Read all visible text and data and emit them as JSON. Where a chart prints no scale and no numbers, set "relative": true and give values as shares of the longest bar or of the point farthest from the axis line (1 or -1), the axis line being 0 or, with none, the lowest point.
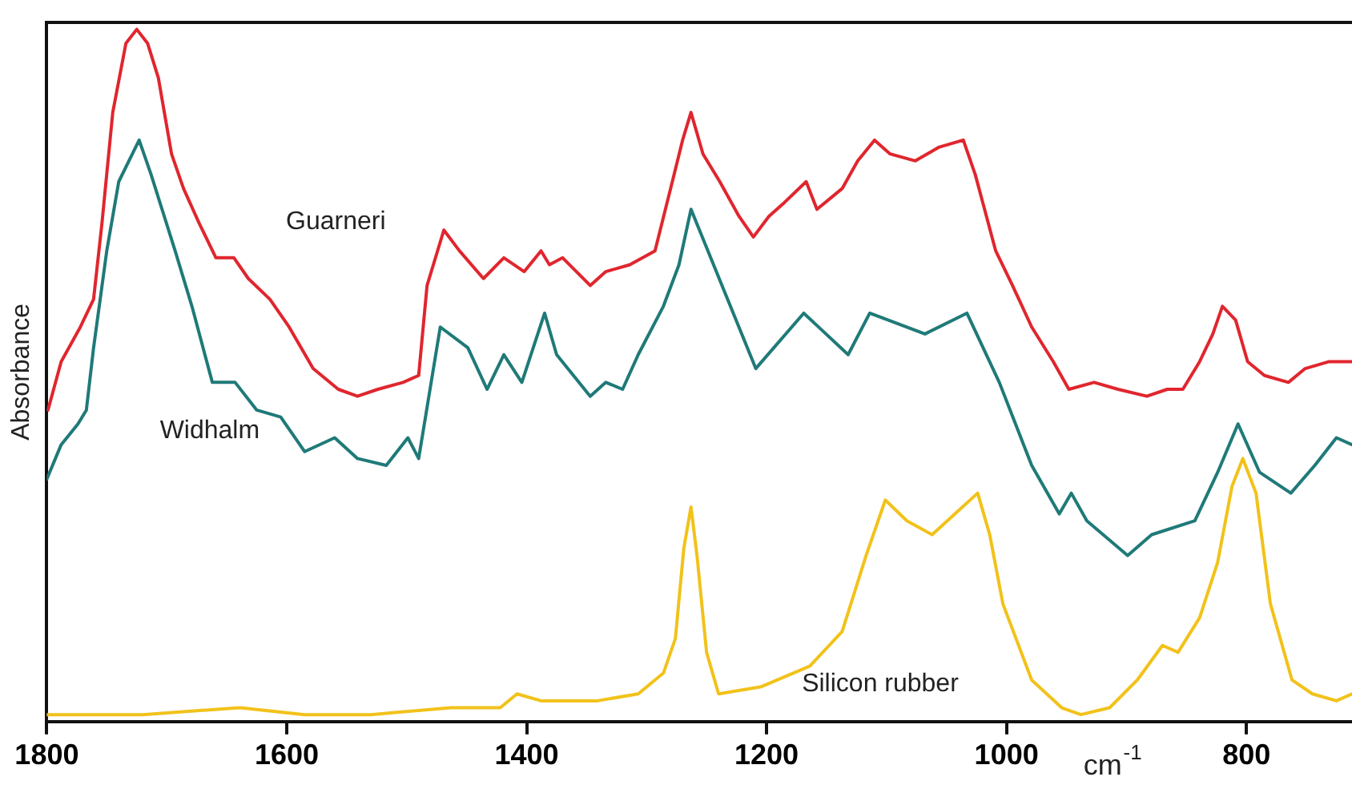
{
  "chart_data": {
    "type": "line",
    "relative": true,
    "xlabel": "cm$^{-1}$",
    "ylabel": "Absorbance",
    "xlim": [
      1800,
      712
    ],
    "xticks": [
      1800,
      1600,
      1400,
      1200,
      1000,
      800
    ],
    "grid": false,
    "legend": false,
    "marker": "none",
    "line_style": "solid",
    "series": [
      {
        "name": "Guarneri",
        "color": "#e0262e",
        "x": [
          1799,
          1788,
          1772,
          1761,
          1754,
          1745,
          1734,
          1725,
          1716,
          1707,
          1696,
          1686,
          1673,
          1659,
          1644,
          1632,
          1614,
          1598,
          1578,
          1557,
          1541,
          1524,
          1503,
          1490,
          1483,
          1469,
          1456,
          1436,
          1419,
          1402,
          1388,
          1381,
          1370,
          1347,
          1334,
          1314,
          1293,
          1280,
          1270,
          1263,
          1253,
          1239,
          1223,
          1211,
          1198,
          1185,
          1167,
          1158,
          1137,
          1124,
          1110,
          1097,
          1076,
          1056,
          1036,
          1026,
          1009,
          995,
          979,
          961,
          948,
          927,
          907,
          883,
          866,
          853,
          839,
          828,
          820,
          809,
          799,
          785,
          765,
          751,
          731,
          712
        ],
        "values": [
          0.45,
          0.52,
          0.57,
          0.61,
          0.72,
          0.88,
          0.98,
          1.0,
          0.98,
          0.93,
          0.82,
          0.77,
          0.72,
          0.67,
          0.67,
          0.64,
          0.61,
          0.57,
          0.51,
          0.48,
          0.47,
          0.48,
          0.49,
          0.5,
          0.63,
          0.71,
          0.68,
          0.64,
          0.67,
          0.65,
          0.68,
          0.66,
          0.67,
          0.63,
          0.65,
          0.66,
          0.68,
          0.77,
          0.84,
          0.88,
          0.82,
          0.78,
          0.73,
          0.7,
          0.73,
          0.75,
          0.78,
          0.74,
          0.77,
          0.81,
          0.84,
          0.82,
          0.81,
          0.83,
          0.84,
          0.79,
          0.68,
          0.63,
          0.57,
          0.52,
          0.48,
          0.49,
          0.48,
          0.47,
          0.48,
          0.48,
          0.52,
          0.56,
          0.6,
          0.58,
          0.52,
          0.5,
          0.49,
          0.51,
          0.52,
          0.52
        ]
      },
      {
        "name": "Widhalm",
        "color": "#1f7a78",
        "x": [
          1800,
          1788,
          1774,
          1767,
          1761,
          1750,
          1740,
          1723,
          1713,
          1693,
          1679,
          1662,
          1643,
          1625,
          1605,
          1585,
          1560,
          1541,
          1517,
          1499,
          1490,
          1472,
          1449,
          1433,
          1419,
          1404,
          1385,
          1375,
          1347,
          1334,
          1320,
          1307,
          1286,
          1273,
          1263,
          1209,
          1169,
          1132,
          1114,
          1068,
          1033,
          1006,
          979,
          956,
          946,
          933,
          899,
          879,
          843,
          824,
          807,
          789,
          763,
          743,
          725,
          712
        ],
        "values": [
          0.35,
          0.4,
          0.43,
          0.45,
          0.54,
          0.68,
          0.78,
          0.84,
          0.79,
          0.68,
          0.6,
          0.49,
          0.49,
          0.45,
          0.44,
          0.39,
          0.41,
          0.38,
          0.37,
          0.41,
          0.38,
          0.57,
          0.54,
          0.48,
          0.53,
          0.49,
          0.59,
          0.53,
          0.47,
          0.49,
          0.48,
          0.53,
          0.6,
          0.66,
          0.74,
          0.51,
          0.59,
          0.53,
          0.59,
          0.56,
          0.59,
          0.49,
          0.37,
          0.3,
          0.33,
          0.29,
          0.24,
          0.27,
          0.29,
          0.36,
          0.43,
          0.36,
          0.33,
          0.37,
          0.41,
          0.4
        ]
      },
      {
        "name": "Silicon rubber",
        "color": "#f2c21a",
        "x": [
          1800,
          1720,
          1639,
          1585,
          1530,
          1463,
          1422,
          1408,
          1388,
          1341,
          1307,
          1286,
          1276,
          1269,
          1263,
          1258,
          1250,
          1240,
          1205,
          1164,
          1137,
          1117,
          1101,
          1083,
          1062,
          1043,
          1024,
          1014,
          1003,
          979,
          954,
          938,
          914,
          891,
          870,
          857,
          839,
          824,
          812,
          803,
          792,
          780,
          762,
          745,
          725,
          712
        ],
        "values": [
          0.01,
          0.01,
          0.02,
          0.01,
          0.01,
          0.02,
          0.02,
          0.04,
          0.03,
          0.03,
          0.04,
          0.07,
          0.12,
          0.25,
          0.31,
          0.24,
          0.1,
          0.04,
          0.05,
          0.08,
          0.13,
          0.24,
          0.32,
          0.29,
          0.27,
          0.3,
          0.33,
          0.27,
          0.17,
          0.06,
          0.02,
          0.01,
          0.02,
          0.06,
          0.11,
          0.1,
          0.15,
          0.23,
          0.34,
          0.38,
          0.33,
          0.17,
          0.06,
          0.04,
          0.03,
          0.04
        ]
      }
    ]
  }
}
